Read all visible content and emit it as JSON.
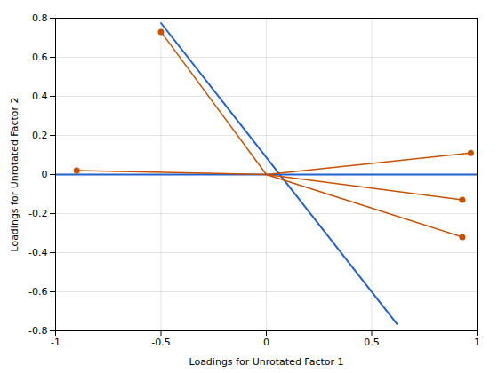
{
  "chart_data": {
    "type": "vector",
    "xlabel": "Loadings for Unrotated Factor 1",
    "ylabel": "Loadings for Unrotated Factor 2",
    "xlim": [
      -1,
      1
    ],
    "ylim": [
      -0.8,
      0.8
    ],
    "xticks": [
      -1,
      -0.5,
      0,
      0.5,
      1
    ],
    "yticks": [
      -0.8,
      -0.6,
      -0.4,
      -0.2,
      0,
      0.2,
      0.4,
      0.6,
      0.8
    ],
    "grid": true,
    "series": [
      {
        "type": "line",
        "color": "#2060d0",
        "x": [
          -0.5,
          0.62
        ],
        "values": [
          0.775,
          -0.765
        ]
      },
      {
        "type": "line",
        "color": "#2060d0",
        "x": [
          -1.0,
          1.0
        ],
        "values": [
          0.0,
          0.0
        ]
      },
      {
        "type": "vector",
        "color": "#c85000",
        "marker": "circle",
        "x": [
          -0.9,
          -0.5,
          0.97,
          0.93,
          0.93
        ],
        "values": [
          0.02,
          0.73,
          0.11,
          -0.13,
          -0.32
        ]
      }
    ]
  }
}
